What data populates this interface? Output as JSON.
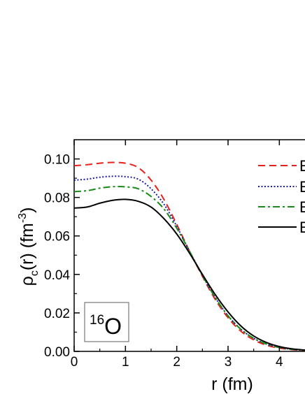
{
  "chart_data": {
    "type": "line",
    "xlabel": "r (fm)",
    "ylabel": {
      "base": "ρ",
      "sub": "c",
      "mid": "(r) (fm",
      "sup": "-3",
      "end": ")"
    },
    "xlim": [
      0,
      4.5
    ],
    "ylim": [
      0,
      0.11
    ],
    "xticks": [
      0,
      1,
      2,
      3,
      4
    ],
    "xtick_labels": [
      "0",
      "1",
      "2",
      "3",
      "4"
    ],
    "yticks": [
      0.0,
      0.02,
      0.04,
      0.06,
      0.08,
      0.1
    ],
    "ytick_labels": [
      "0.00",
      "0.02",
      "0.04",
      "0.06",
      "0.08",
      "0.10"
    ],
    "grid": false,
    "legend_position": "top-right",
    "annotation": {
      "sup": "16",
      "main": "O"
    },
    "x": [
      0,
      0.25,
      0.5,
      0.75,
      1.0,
      1.25,
      1.5,
      1.75,
      2.0,
      2.25,
      2.5,
      2.75,
      3.0,
      3.25,
      3.5,
      3.75,
      4.0,
      4.25,
      4.5
    ],
    "series": [
      {
        "name": "E",
        "color": "#e8211d",
        "dash": "dashed",
        "values": [
          0.0965,
          0.097,
          0.0978,
          0.0982,
          0.0978,
          0.0955,
          0.089,
          0.079,
          0.066,
          0.052,
          0.039,
          0.027,
          0.0175,
          0.0105,
          0.006,
          0.0032,
          0.0017,
          0.0009,
          0.0005
        ]
      },
      {
        "name": "E",
        "color": "#1c1ca6",
        "dash": "dotted",
        "values": [
          0.089,
          0.0895,
          0.0905,
          0.091,
          0.0908,
          0.0895,
          0.0845,
          0.0765,
          0.065,
          0.052,
          0.0395,
          0.028,
          0.0185,
          0.0115,
          0.0068,
          0.0038,
          0.002,
          0.0011,
          0.0006
        ]
      },
      {
        "name": "E",
        "color": "#1a8a1a",
        "dash": "dashdot",
        "values": [
          0.083,
          0.0835,
          0.0848,
          0.0856,
          0.0855,
          0.0845,
          0.0805,
          0.074,
          0.064,
          0.052,
          0.0395,
          0.028,
          0.0185,
          0.0115,
          0.0068,
          0.0038,
          0.002,
          0.0011,
          0.0006
        ]
      },
      {
        "name": "E",
        "color": "#000000",
        "dash": "solid",
        "values": [
          0.0745,
          0.075,
          0.077,
          0.0785,
          0.079,
          0.078,
          0.075,
          0.069,
          0.061,
          0.051,
          0.04,
          0.0295,
          0.0205,
          0.0132,
          0.008,
          0.0046,
          0.0025,
          0.0013,
          0.0007
        ]
      }
    ]
  }
}
